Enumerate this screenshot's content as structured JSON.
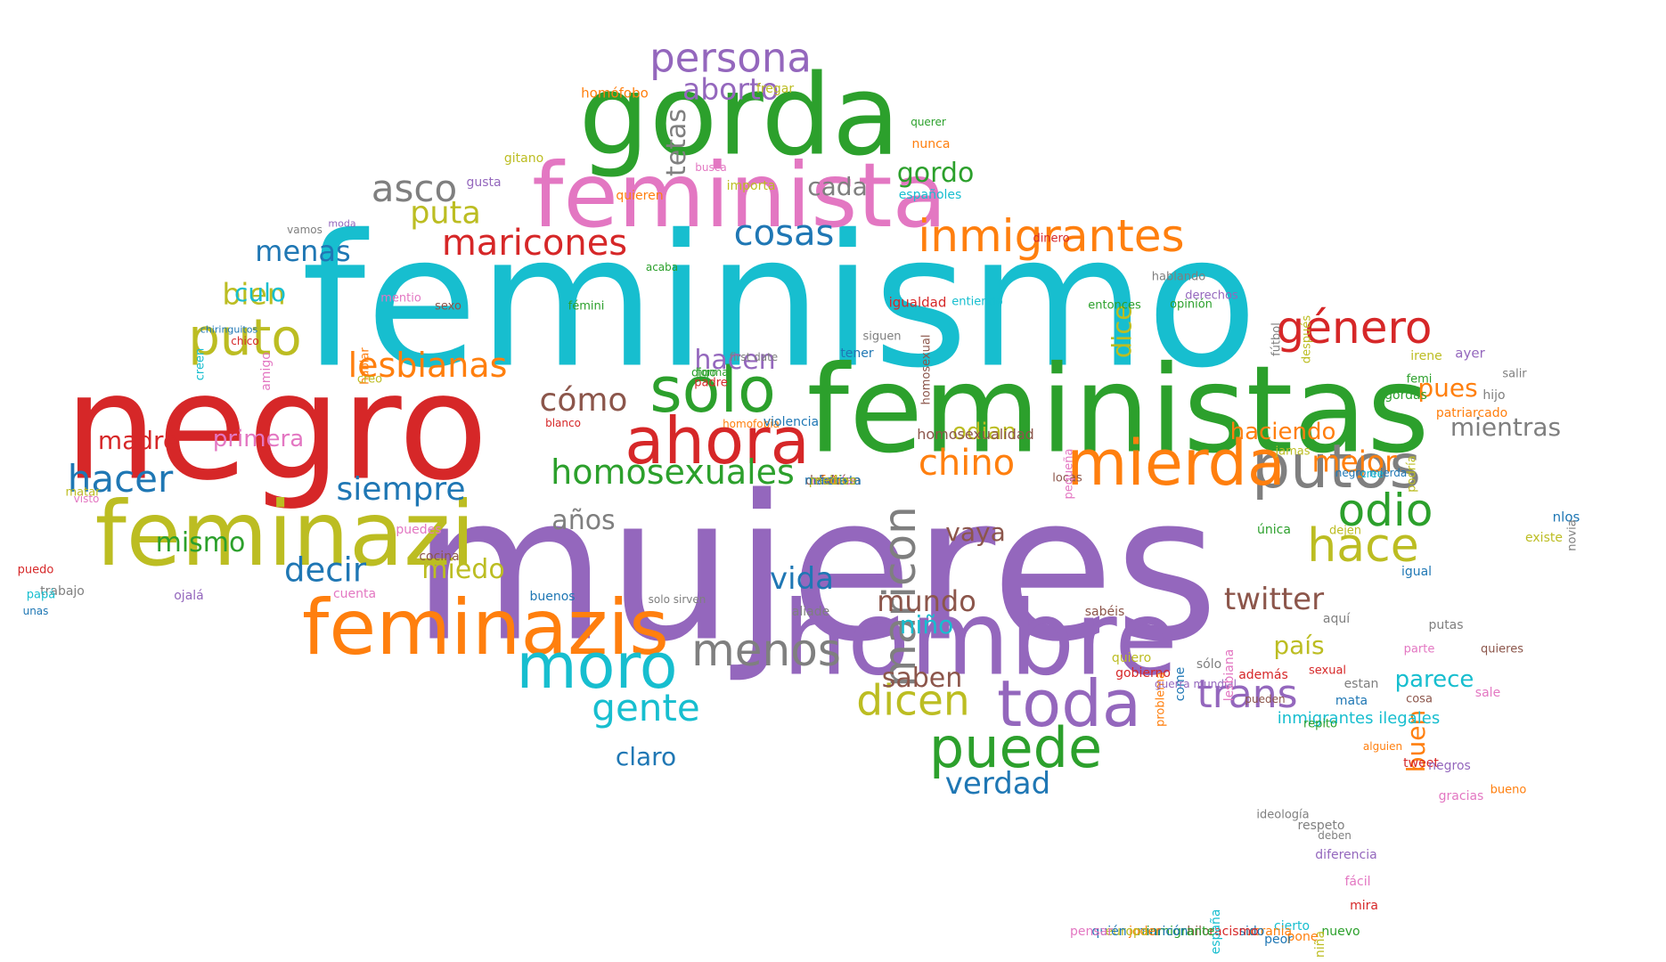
{
  "colors": {
    "purple": "#9467bd",
    "cyan": "#17becf",
    "red": "#d62728",
    "green": "#2ca02c",
    "pink": "#e377c2",
    "olive": "#bcbd22",
    "orange": "#ff7f0e",
    "blue": "#1f77b4",
    "gray": "#7f7f7f",
    "brown": "#8c564b"
  },
  "words": [
    {
      "text": "mujeres",
      "color": "purple",
      "vertical": false
    },
    {
      "text": "feminismo",
      "color": "cyan",
      "vertical": false
    },
    {
      "text": "negro",
      "color": "red",
      "vertical": false
    },
    {
      "text": "feministas",
      "color": "green",
      "vertical": false
    },
    {
      "text": "gorda",
      "color": "green",
      "vertical": false
    },
    {
      "text": "feminista",
      "color": "pink",
      "vertical": false
    },
    {
      "text": "hombre",
      "color": "purple",
      "vertical": false
    },
    {
      "text": "feminazi",
      "color": "olive",
      "vertical": false
    },
    {
      "text": "feminazis",
      "color": "orange",
      "vertical": false
    },
    {
      "text": "putos",
      "color": "gray",
      "vertical": false
    },
    {
      "text": "mierda",
      "color": "orange",
      "vertical": false
    },
    {
      "text": "toda",
      "color": "purple",
      "vertical": false
    },
    {
      "text": "ahora",
      "color": "red",
      "vertical": false
    },
    {
      "text": "solo",
      "color": "green",
      "vertical": false
    },
    {
      "text": "moro",
      "color": "cyan",
      "vertical": false
    },
    {
      "text": "puede",
      "color": "green",
      "vertical": false
    },
    {
      "text": "maricon",
      "color": "gray",
      "vertical": true
    },
    {
      "text": "género",
      "color": "red",
      "vertical": false
    },
    {
      "text": "persona",
      "color": "purple",
      "vertical": false
    },
    {
      "text": "odio",
      "color": "green",
      "vertical": false
    },
    {
      "text": "hace",
      "color": "olive",
      "vertical": false
    },
    {
      "text": "puto",
      "color": "olive",
      "vertical": false
    },
    {
      "text": "menos",
      "color": "gray",
      "vertical": false
    },
    {
      "text": "inmigrantes",
      "color": "orange",
      "vertical": false
    },
    {
      "text": "asco",
      "color": "gray",
      "vertical": false
    },
    {
      "text": "homosexuales",
      "color": "green",
      "vertical": false
    },
    {
      "text": "dicen",
      "color": "olive",
      "vertical": false
    },
    {
      "text": "trans",
      "color": "purple",
      "vertical": false
    },
    {
      "text": "hacer",
      "color": "blue",
      "vertical": false
    },
    {
      "text": "gente",
      "color": "cyan",
      "vertical": false
    },
    {
      "text": "maricones",
      "color": "red",
      "vertical": false
    },
    {
      "text": "cosas",
      "color": "blue",
      "vertical": false
    },
    {
      "text": "lesbianas",
      "color": "orange",
      "vertical": false
    },
    {
      "text": "chino",
      "color": "orange",
      "vertical": false
    },
    {
      "text": "tetas",
      "color": "gray",
      "vertical": true
    },
    {
      "text": "puta",
      "color": "olive",
      "vertical": false
    },
    {
      "text": "siempre",
      "color": "blue",
      "vertical": false
    },
    {
      "text": "cómo",
      "color": "brown",
      "vertical": false
    },
    {
      "text": "decir",
      "color": "blue",
      "vertical": false
    },
    {
      "text": "twitter",
      "color": "brown",
      "vertical": false
    },
    {
      "text": "aborto",
      "color": "purple",
      "vertical": false
    },
    {
      "text": "mejor",
      "color": "orange",
      "vertical": false
    },
    {
      "text": "gordo",
      "color": "green",
      "vertical": false
    },
    {
      "text": "dice",
      "color": "olive",
      "vertical": true
    },
    {
      "text": "mundo",
      "color": "brown",
      "vertical": false
    },
    {
      "text": "vida",
      "color": "blue",
      "vertical": false
    },
    {
      "text": "verdad",
      "color": "blue",
      "vertical": false
    },
    {
      "text": "bien",
      "color": "olive",
      "vertical": false
    },
    {
      "text": "hacen",
      "color": "purple",
      "vertical": false
    },
    {
      "text": "mientras",
      "color": "gray",
      "vertical": false
    },
    {
      "text": "menas",
      "color": "blue",
      "vertical": false
    },
    {
      "text": "haciendo",
      "color": "orange",
      "vertical": false
    },
    {
      "text": "vaya",
      "color": "brown",
      "vertical": false
    },
    {
      "text": "miedo",
      "color": "olive",
      "vertical": false
    },
    {
      "text": "mismo",
      "color": "green",
      "vertical": false
    },
    {
      "text": "madre",
      "color": "red",
      "vertical": false
    },
    {
      "text": "culo",
      "color": "cyan",
      "vertical": false
    },
    {
      "text": "primera",
      "color": "pink",
      "vertical": false
    },
    {
      "text": "pues",
      "color": "orange",
      "vertical": false
    },
    {
      "text": "años",
      "color": "gray",
      "vertical": false
    },
    {
      "text": "odian",
      "color": "olive",
      "vertical": false
    },
    {
      "text": "cada",
      "color": "gray",
      "vertical": false
    },
    {
      "text": "parece",
      "color": "cyan",
      "vertical": false
    },
    {
      "text": "saben",
      "color": "brown",
      "vertical": false
    },
    {
      "text": "claro",
      "color": "blue",
      "vertical": false
    },
    {
      "text": "niño",
      "color": "cyan",
      "vertical": false
    },
    {
      "text": "país",
      "color": "olive",
      "vertical": false
    },
    {
      "text": "buen",
      "color": "orange",
      "vertical": true
    },
    {
      "text": "homosexualidad",
      "color": "brown",
      "vertical": false
    },
    {
      "text": "igualdad",
      "color": "red",
      "vertical": false
    },
    {
      "text": "inmigrantes ilegales",
      "color": "cyan",
      "vertical": false
    },
    {
      "text": "homófobo",
      "color": "orange",
      "vertical": false
    },
    {
      "text": "fregar",
      "color": "olive",
      "vertical": false
    },
    {
      "text": "querer",
      "color": "green",
      "vertical": false
    },
    {
      "text": "nunca",
      "color": "orange",
      "vertical": false
    },
    {
      "text": "gitano",
      "color": "olive",
      "vertical": false
    },
    {
      "text": "busca",
      "color": "pink",
      "vertical": false
    },
    {
      "text": "gusta",
      "color": "purple",
      "vertical": false
    },
    {
      "text": "importa",
      "color": "olive",
      "vertical": false
    },
    {
      "text": "quieren",
      "color": "orange",
      "vertical": false
    },
    {
      "text": "españoles",
      "color": "cyan",
      "vertical": false
    },
    {
      "text": "vamos",
      "color": "gray",
      "vertical": false
    },
    {
      "text": "moda",
      "color": "purple",
      "vertical": false
    },
    {
      "text": "dinero",
      "color": "red",
      "vertical": false
    },
    {
      "text": "acaba",
      "color": "green",
      "vertical": false
    },
    {
      "text": "hablando",
      "color": "gray",
      "vertical": false
    },
    {
      "text": "derechos",
      "color": "purple",
      "vertical": false
    },
    {
      "text": "chico",
      "color": "red",
      "vertical": false
    },
    {
      "text": "mentio",
      "color": "pink",
      "vertical": false
    },
    {
      "text": "sexo",
      "color": "brown",
      "vertical": false
    },
    {
      "text": "fémini",
      "color": "green",
      "vertical": false
    },
    {
      "text": "entiendo",
      "color": "cyan",
      "vertical": false
    },
    {
      "text": "entonces",
      "color": "green",
      "vertical": false
    },
    {
      "text": "opinión",
      "color": "green",
      "vertical": false
    },
    {
      "text": "chiringuitos",
      "color": "blue",
      "vertical": false
    },
    {
      "text": "padre",
      "color": "red",
      "vertical": false
    },
    {
      "text": "siguen",
      "color": "gray",
      "vertical": false
    },
    {
      "text": "homosexual",
      "color": "brown",
      "vertical": true
    },
    {
      "text": "fútbol",
      "color": "gray",
      "vertical": true
    },
    {
      "text": "después",
      "color": "olive",
      "vertical": true
    },
    {
      "text": "creen",
      "color": "cyan",
      "vertical": true
    },
    {
      "text": "amigo",
      "color": "pink",
      "vertical": true
    },
    {
      "text": "hablar",
      "color": "orange",
      "vertical": true
    },
    {
      "text": "forma",
      "color": "green",
      "vertical": false
    },
    {
      "text": "first date",
      "color": "gray",
      "vertical": false
    },
    {
      "text": "tener",
      "color": "blue",
      "vertical": false
    },
    {
      "text": "irene",
      "color": "olive",
      "vertical": false
    },
    {
      "text": "ayer",
      "color": "purple",
      "vertical": false
    },
    {
      "text": "salir",
      "color": "gray",
      "vertical": false
    },
    {
      "text": "gordas",
      "color": "green",
      "vertical": false
    },
    {
      "text": "hijo",
      "color": "gray",
      "vertical": false
    },
    {
      "text": "patriarcado",
      "color": "orange",
      "vertical": false
    },
    {
      "text": "creo",
      "color": "olive",
      "vertical": false
    },
    {
      "text": "digo",
      "color": "green",
      "vertical": false
    },
    {
      "text": "femi",
      "color": "green",
      "vertical": false
    },
    {
      "text": "blanco",
      "color": "red",
      "vertical": false
    },
    {
      "text": "homofobia",
      "color": "orange",
      "vertical": false
    },
    {
      "text": "violencia",
      "color": "blue",
      "vertical": false
    },
    {
      "text": "locas",
      "color": "brown",
      "vertical": false
    },
    {
      "text": "negro mierda",
      "color": "blue",
      "vertical": false
    },
    {
      "text": "cree",
      "color": "cyan",
      "vertical": false
    },
    {
      "text": "jamas",
      "color": "olive",
      "vertical": false
    },
    {
      "text": "pequeña",
      "color": "pink",
      "vertical": true
    },
    {
      "text": "podría",
      "color": "olive",
      "vertical": true
    },
    {
      "text": "nlos",
      "color": "blue",
      "vertical": false
    },
    {
      "text": "novia",
      "color": "gray",
      "vertical": true
    },
    {
      "text": "matar",
      "color": "olive",
      "vertical": false
    },
    {
      "text": "visto",
      "color": "pink",
      "vertical": false
    },
    {
      "text": "puedes",
      "color": "pink",
      "vertical": false
    },
    {
      "text": "cocina",
      "color": "brown",
      "vertical": false
    },
    {
      "text": "única",
      "color": "green",
      "vertical": false
    },
    {
      "text": "dejen",
      "color": "olive",
      "vertical": false
    },
    {
      "text": "igual",
      "color": "blue",
      "vertical": false
    },
    {
      "text": "existe",
      "color": "olive",
      "vertical": false
    },
    {
      "text": "puedo",
      "color": "red",
      "vertical": false
    },
    {
      "text": "trabajo",
      "color": "gray",
      "vertical": false
    },
    {
      "text": "papá",
      "color": "cyan",
      "vertical": false
    },
    {
      "text": "unas",
      "color": "blue",
      "vertical": false
    },
    {
      "text": "ojalá",
      "color": "purple",
      "vertical": false
    },
    {
      "text": "cuenta",
      "color": "pink",
      "vertical": false
    },
    {
      "text": "buenos",
      "color": "blue",
      "vertical": false
    },
    {
      "text": "solo sirven",
      "color": "gray",
      "vertical": false
    },
    {
      "text": "aliade",
      "color": "gray",
      "vertical": false
    },
    {
      "text": "sabéis",
      "color": "brown",
      "vertical": false
    },
    {
      "text": "aquí",
      "color": "gray",
      "vertical": false
    },
    {
      "text": "putas",
      "color": "gray",
      "vertical": false
    },
    {
      "text": "quieres",
      "color": "brown",
      "vertical": false
    },
    {
      "text": "sale",
      "color": "pink",
      "vertical": false
    },
    {
      "text": "sexual",
      "color": "red",
      "vertical": false
    },
    {
      "text": "además",
      "color": "red",
      "vertical": false
    },
    {
      "text": "estan",
      "color": "gray",
      "vertical": false
    },
    {
      "text": "come",
      "color": "blue",
      "vertical": true
    },
    {
      "text": "problema",
      "color": "orange",
      "vertical": true
    },
    {
      "text": "quiero",
      "color": "olive",
      "vertical": false
    },
    {
      "text": "guerra mundial",
      "color": "purple",
      "vertical": false
    },
    {
      "text": "sólo",
      "color": "gray",
      "vertical": false
    },
    {
      "text": "lesbiana",
      "color": "pink",
      "vertical": true
    },
    {
      "text": "gobierno",
      "color": "red",
      "vertical": false
    },
    {
      "text": "pueden",
      "color": "brown",
      "vertical": false
    },
    {
      "text": "cosa",
      "color": "brown",
      "vertical": false
    },
    {
      "text": "parte",
      "color": "pink",
      "vertical": false
    },
    {
      "text": "mata",
      "color": "blue",
      "vertical": false
    },
    {
      "text": "repito",
      "color": "green",
      "vertical": false
    },
    {
      "text": "alguien",
      "color": "orange",
      "vertical": false
    },
    {
      "text": "tweet",
      "color": "red",
      "vertical": false
    },
    {
      "text": "negros",
      "color": "purple",
      "vertical": false
    },
    {
      "text": "bueno",
      "color": "orange",
      "vertical": false
    },
    {
      "text": "gracias",
      "color": "pink",
      "vertical": false
    },
    {
      "text": "ideología",
      "color": "gray",
      "vertical": false
    },
    {
      "text": "respeto",
      "color": "gray",
      "vertical": false
    },
    {
      "text": "deben",
      "color": "gray",
      "vertical": false
    },
    {
      "text": "diferencia",
      "color": "purple",
      "vertical": false
    },
    {
      "text": "fácil",
      "color": "pink",
      "vertical": false
    },
    {
      "text": "mira",
      "color": "red",
      "vertical": false
    },
    {
      "text": "nuevo",
      "color": "green",
      "vertical": false
    },
    {
      "text": "niña",
      "color": "olive",
      "vertical": true
    },
    {
      "text": "pone",
      "color": "orange",
      "vertical": false
    },
    {
      "text": "cierto",
      "color": "cyan",
      "vertical": false
    },
    {
      "text": "peor",
      "color": "blue",
      "vertical": false
    },
    {
      "text": "ucrania",
      "color": "orange",
      "vertical": false
    },
    {
      "text": "sido",
      "color": "blue",
      "vertical": false
    },
    {
      "text": "racismo",
      "color": "red",
      "vertical": false
    },
    {
      "text": "españa",
      "color": "cyan",
      "vertical": true
    },
    {
      "text": "hilo",
      "color": "brown",
      "vertical": false
    },
    {
      "text": "inmigrante",
      "color": "green",
      "vertical": false
    },
    {
      "text": "maricón",
      "color": "blue",
      "vertical": false
    },
    {
      "text": "joder",
      "color": "orange",
      "vertical": false
    },
    {
      "text": "europa",
      "color": "olive",
      "vertical": false
    },
    {
      "text": "quién",
      "color": "blue",
      "vertical": false
    },
    {
      "text": "pensar",
      "color": "pink",
      "vertical": false
    },
    {
      "text": "saber",
      "color": "gray",
      "vertical": false
    },
    {
      "text": "deberían",
      "color": "brown",
      "vertical": false
    },
    {
      "text": "prefiero",
      "color": "olive",
      "vertical": false
    },
    {
      "text": "foto",
      "color": "orange",
      "vertical": false
    },
    {
      "text": "racista",
      "color": "pink",
      "vertical": false
    },
    {
      "text": "machista",
      "color": "blue",
      "vertical": false
    },
    {
      "text": "falta",
      "color": "brown",
      "vertical": false
    },
    {
      "text": "hora",
      "color": "blue",
      "vertical": false
    },
    {
      "text": "medios",
      "color": "olive",
      "vertical": false
    }
  ]
}
